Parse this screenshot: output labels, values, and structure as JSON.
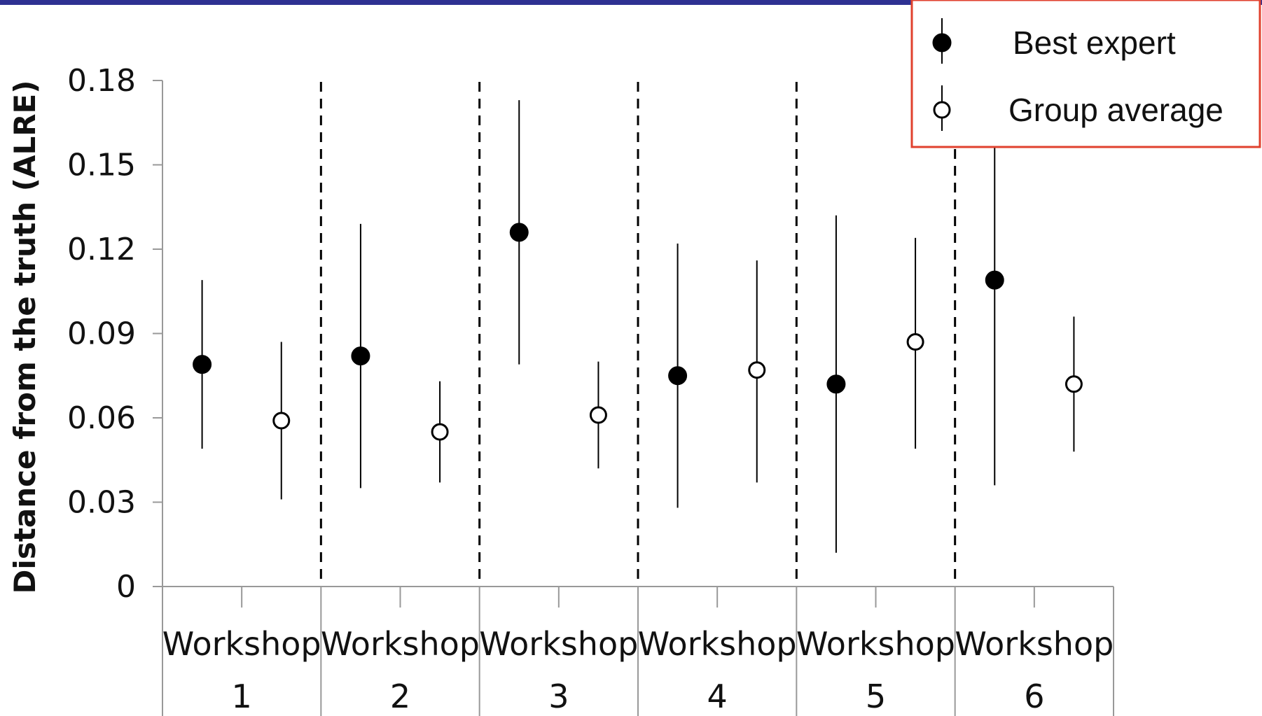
{
  "colors": {
    "top_bar": "#2e3192",
    "legend_border": "#e0412e",
    "marker": "#000000",
    "axis": "#999999"
  },
  "chart_data": {
    "type": "scatter",
    "title": "",
    "ylabel": "Distance from the truth (ALRE)",
    "xlabel": "",
    "ylim": [
      0,
      0.18
    ],
    "yticks": [
      0,
      0.03,
      0.06,
      0.09,
      0.12,
      0.15,
      0.18
    ],
    "ytick_labels": [
      "0",
      "0.03",
      "0.06",
      "0.09",
      "0.12",
      "0.15",
      "0.18"
    ],
    "categories": [
      {
        "line1": "Workshop",
        "line2": "1"
      },
      {
        "line1": "Workshop",
        "line2": "2"
      },
      {
        "line1": "Workshop",
        "line2": "3"
      },
      {
        "line1": "Workshop",
        "line2": "4"
      },
      {
        "line1": "Workshop",
        "line2": "5"
      },
      {
        "line1": "Workshop",
        "line2": "6"
      }
    ],
    "grid": false,
    "legend_position": "top-right",
    "series": [
      {
        "name": "Best expert",
        "marker": "filled-circle",
        "values": [
          0.079,
          0.082,
          0.126,
          0.075,
          0.072,
          0.109
        ],
        "lower": [
          0.049,
          0.035,
          0.079,
          0.028,
          0.012,
          0.036
        ],
        "upper": [
          0.109,
          0.129,
          0.173,
          0.122,
          0.132,
          0.176
        ]
      },
      {
        "name": "Group average",
        "marker": "open-circle",
        "values": [
          0.059,
          0.055,
          0.061,
          0.077,
          0.087,
          0.072
        ],
        "lower": [
          0.031,
          0.037,
          0.042,
          0.037,
          0.049,
          0.048
        ],
        "upper": [
          0.087,
          0.073,
          0.08,
          0.116,
          0.124,
          0.096
        ]
      }
    ]
  }
}
